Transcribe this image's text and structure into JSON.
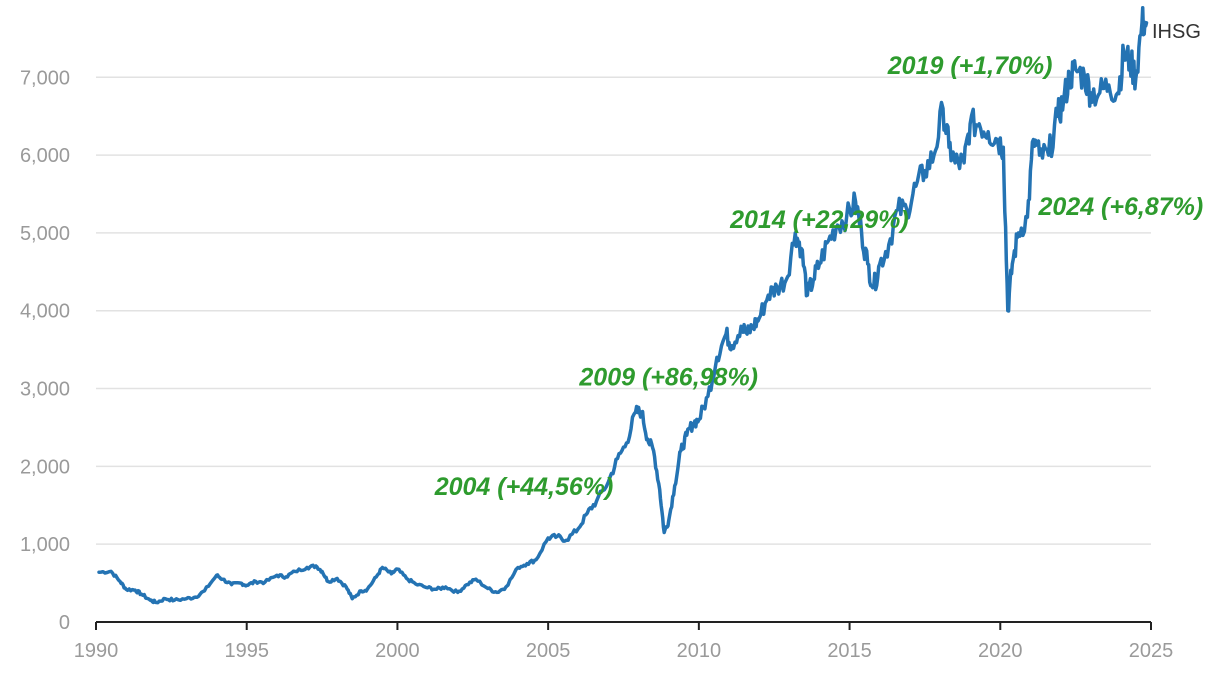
{
  "chart_data": {
    "type": "line",
    "title": "",
    "xlabel": "",
    "ylabel": "",
    "xlim": [
      1990,
      2025
    ],
    "ylim": [
      0,
      7800
    ],
    "grid": true,
    "x_ticks": [
      1990,
      1995,
      2000,
      2005,
      2010,
      2015,
      2020,
      2025
    ],
    "x_tick_labels": [
      "1990",
      "1995",
      "2000",
      "2005",
      "2010",
      "2015",
      "2020",
      "2025"
    ],
    "y_ticks": [
      0,
      1000,
      2000,
      3000,
      4000,
      5000,
      6000,
      7000
    ],
    "y_tick_labels": [
      "0",
      "1,000",
      "2,000",
      "3,000",
      "4,000",
      "5,000",
      "6,000",
      "7,000"
    ],
    "colors": {
      "line": "#2473b3",
      "annotation": "#2e9b2e",
      "tick": "#9a9a9a",
      "grid": "#e2e2e2"
    },
    "series": [
      {
        "name": "IHSG",
        "x": [
          1990.1,
          1990.5,
          1990.8,
          1991.0,
          1991.3,
          1991.5,
          1991.8,
          1992.0,
          1992.3,
          1992.6,
          1993.0,
          1993.3,
          1993.6,
          1994.0,
          1994.2,
          1994.5,
          1994.8,
          1995.0,
          1995.3,
          1995.6,
          1996.0,
          1996.3,
          1996.6,
          1997.0,
          1997.3,
          1997.5,
          1997.7,
          1998.0,
          1998.3,
          1998.5,
          1998.8,
          1999.0,
          1999.3,
          1999.5,
          1999.8,
          2000.0,
          2000.3,
          2000.6,
          2001.0,
          2001.3,
          2001.6,
          2002.0,
          2002.3,
          2002.6,
          2003.0,
          2003.3,
          2003.6,
          2004.0,
          2004.3,
          2004.6,
          2005.0,
          2005.3,
          2005.6,
          2006.0,
          2006.3,
          2006.6,
          2007.0,
          2007.3,
          2007.6,
          2007.9,
          2008.1,
          2008.3,
          2008.5,
          2008.7,
          2008.85,
          2009.0,
          2009.2,
          2009.4,
          2009.6,
          2009.8,
          2010.0,
          2010.3,
          2010.6,
          2010.9,
          2011.1,
          2011.4,
          2011.6,
          2011.8,
          2012.0,
          2012.3,
          2012.6,
          2012.9,
          2013.2,
          2013.4,
          2013.6,
          2013.8,
          2014.0,
          2014.3,
          2014.6,
          2014.9,
          2015.2,
          2015.4,
          2015.6,
          2015.8,
          2016.0,
          2016.3,
          2016.6,
          2016.9,
          2017.2,
          2017.5,
          2017.8,
          2018.1,
          2018.3,
          2018.5,
          2018.8,
          2019.0,
          2019.3,
          2019.6,
          2019.9,
          2020.1,
          2020.25,
          2020.4,
          2020.6,
          2020.9,
          2021.1,
          2021.3,
          2021.6,
          2021.9,
          2022.1,
          2022.3,
          2022.5,
          2022.8,
          2023.0,
          2023.3,
          2023.6,
          2023.9,
          2024.1,
          2024.3,
          2024.5,
          2024.7,
          2024.85
        ],
        "y": [
          640,
          650,
          520,
          420,
          410,
          360,
          280,
          250,
          300,
          280,
          300,
          320,
          400,
          600,
          550,
          480,
          500,
          470,
          520,
          510,
          600,
          580,
          650,
          700,
          720,
          650,
          520,
          560,
          450,
          300,
          400,
          420,
          580,
          700,
          620,
          680,
          560,
          490,
          440,
          420,
          450,
          380,
          480,
          550,
          430,
          380,
          450,
          700,
          750,
          800,
          1080,
          1100,
          1050,
          1200,
          1400,
          1550,
          1800,
          2100,
          2300,
          2700,
          2700,
          2350,
          2200,
          1700,
          1150,
          1300,
          1750,
          2200,
          2400,
          2550,
          2600,
          2900,
          3400,
          3700,
          3550,
          3800,
          3700,
          3800,
          3900,
          4200,
          4300,
          4400,
          5000,
          4800,
          4200,
          4400,
          4600,
          4900,
          5100,
          5200,
          5400,
          5000,
          4600,
          4300,
          4600,
          4850,
          5300,
          5300,
          5600,
          5800,
          6000,
          6600,
          6100,
          5900,
          5900,
          6400,
          6400,
          6300,
          6200,
          6100,
          4000,
          4600,
          5000,
          5200,
          6200,
          6000,
          6000,
          6500,
          6700,
          7000,
          7100,
          7000,
          6800,
          6800,
          6900,
          6800,
          7300,
          7200,
          7000,
          7700,
          7700
        ]
      }
    ],
    "series_label": "IHSG",
    "annotations": [
      {
        "text": "2004 (+44,56%)",
        "x": 2004.2,
        "y": 1630
      },
      {
        "text": "2009 (+86,98%)",
        "x": 2009.0,
        "y": 3040
      },
      {
        "text": "2014 (+22,29%)",
        "x": 2014.0,
        "y": 5060
      },
      {
        "text": "2019 (+1,70%)",
        "x": 2019.0,
        "y": 7040
      },
      {
        "text": "2024 (+6,87%)",
        "x": 2024.0,
        "y": 5230
      }
    ]
  }
}
